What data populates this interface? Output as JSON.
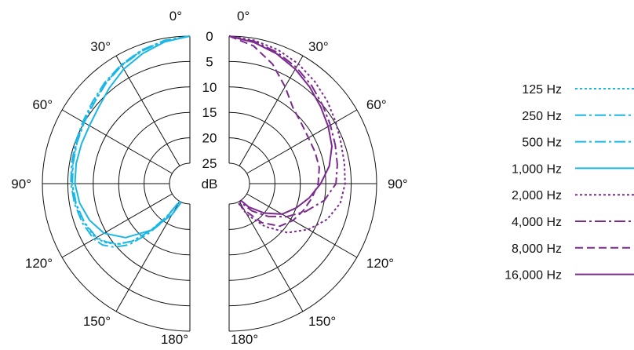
{
  "chart_data": {
    "type": "polar-line",
    "title": "",
    "radial_unit": "dB",
    "radial_ticks": [
      "0",
      "5",
      "10",
      "15",
      "20",
      "25"
    ],
    "radial_range_db": [
      0,
      25
    ],
    "angle_labels_left": [
      {
        "deg": 0,
        "label": "0°"
      },
      {
        "deg": 30,
        "label": "30°"
      },
      {
        "deg": 60,
        "label": "60°"
      },
      {
        "deg": 90,
        "label": "90°"
      },
      {
        "deg": 120,
        "label": "120°"
      },
      {
        "deg": 150,
        "label": "150°"
      },
      {
        "deg": 180,
        "label": "180°"
      }
    ],
    "angle_labels_right": [
      {
        "deg": 0,
        "label": "0°"
      },
      {
        "deg": 30,
        "label": "30°"
      },
      {
        "deg": 60,
        "label": "60°"
      },
      {
        "deg": 90,
        "label": "90°"
      },
      {
        "deg": 120,
        "label": "120°"
      },
      {
        "deg": 150,
        "label": "150°"
      },
      {
        "deg": 180,
        "label": "180°"
      }
    ],
    "colors": {
      "low": "#1ab7e6",
      "high": "#7b2a8e"
    },
    "series": [
      {
        "name": "125 Hz",
        "side": "left",
        "color": "#1ab7e6",
        "dash": "3 3",
        "points": [
          [
            0,
            0
          ],
          [
            10,
            0.5
          ],
          [
            20,
            1.2
          ],
          [
            30,
            2.1
          ],
          [
            40,
            3.2
          ],
          [
            50,
            4.2
          ],
          [
            60,
            4.9
          ],
          [
            70,
            5.3
          ],
          [
            80,
            5.6
          ],
          [
            90,
            5.8
          ],
          [
            100,
            6.2
          ],
          [
            110,
            6.8
          ],
          [
            120,
            7.6
          ],
          [
            125,
            8.8
          ],
          [
            130,
            10.4
          ],
          [
            135,
            13
          ],
          [
            140,
            17
          ],
          [
            145,
            21
          ],
          [
            150,
            25
          ]
        ]
      },
      {
        "name": "250 Hz",
        "side": "left",
        "color": "#1ab7e6",
        "dash": "14 4 3 4",
        "points": [
          [
            0,
            0
          ],
          [
            10,
            0.4
          ],
          [
            20,
            1.1
          ],
          [
            30,
            2.0
          ],
          [
            40,
            3.0
          ],
          [
            50,
            4.0
          ],
          [
            60,
            4.7
          ],
          [
            70,
            5.1
          ],
          [
            80,
            5.4
          ],
          [
            90,
            5.6
          ],
          [
            100,
            6.0
          ],
          [
            110,
            6.5
          ],
          [
            120,
            7.2
          ],
          [
            125,
            8.0
          ],
          [
            130,
            9.6
          ],
          [
            135,
            12
          ],
          [
            140,
            16
          ],
          [
            145,
            20
          ],
          [
            150,
            25
          ]
        ]
      },
      {
        "name": "500 Hz",
        "side": "left",
        "color": "#1ab7e6",
        "dash": "14 4 3 4",
        "points": [
          [
            0,
            0
          ],
          [
            10,
            0.5
          ],
          [
            20,
            1.3
          ],
          [
            30,
            2.2
          ],
          [
            40,
            3.3
          ],
          [
            50,
            4.4
          ],
          [
            60,
            5.0
          ],
          [
            70,
            5.4
          ],
          [
            80,
            5.7
          ],
          [
            90,
            5.9
          ],
          [
            100,
            6.3
          ],
          [
            110,
            6.9
          ],
          [
            120,
            7.8
          ],
          [
            125,
            9.0
          ],
          [
            130,
            10.6
          ],
          [
            135,
            13
          ],
          [
            140,
            17
          ],
          [
            145,
            21
          ],
          [
            150,
            25
          ]
        ]
      },
      {
        "name": "1,000 Hz",
        "side": "left",
        "color": "#1ab7e6",
        "dash": "",
        "points": [
          [
            0,
            0
          ],
          [
            10,
            0.7
          ],
          [
            20,
            1.8
          ],
          [
            30,
            3.0
          ],
          [
            40,
            4.4
          ],
          [
            50,
            5.6
          ],
          [
            60,
            6.2
          ],
          [
            70,
            6.3
          ],
          [
            80,
            6.3
          ],
          [
            90,
            6.4
          ],
          [
            100,
            7.0
          ],
          [
            110,
            8.0
          ],
          [
            120,
            9.5
          ],
          [
            130,
            12.5
          ],
          [
            140,
            17
          ],
          [
            150,
            22
          ],
          [
            155,
            25
          ]
        ]
      },
      {
        "name": "2,000 Hz",
        "side": "right",
        "color": "#7b2a8e",
        "dash": "3 3",
        "points": [
          [
            0,
            0
          ],
          [
            10,
            0.4
          ],
          [
            20,
            1.0
          ],
          [
            30,
            1.8
          ],
          [
            40,
            2.8
          ],
          [
            50,
            3.8
          ],
          [
            60,
            4.8
          ],
          [
            70,
            5.6
          ],
          [
            80,
            6.0
          ],
          [
            90,
            6.2
          ],
          [
            100,
            6.8
          ],
          [
            110,
            8.5
          ],
          [
            120,
            11
          ],
          [
            130,
            14
          ],
          [
            140,
            18
          ],
          [
            150,
            22
          ],
          [
            155,
            25
          ]
        ]
      },
      {
        "name": "4,000 Hz",
        "side": "right",
        "color": "#7b2a8e",
        "dash": "14 4 3 4",
        "points": [
          [
            0,
            0
          ],
          [
            10,
            0.6
          ],
          [
            20,
            1.5
          ],
          [
            30,
            2.6
          ],
          [
            40,
            3.8
          ],
          [
            50,
            5.0
          ],
          [
            60,
            6.0
          ],
          [
            70,
            6.8
          ],
          [
            80,
            7.4
          ],
          [
            90,
            8.0
          ],
          [
            100,
            10
          ],
          [
            110,
            13
          ],
          [
            120,
            16
          ],
          [
            130,
            19
          ],
          [
            140,
            22
          ],
          [
            150,
            25
          ]
        ]
      },
      {
        "name": "8,000 Hz",
        "side": "right",
        "color": "#7b2a8e",
        "dash": "10 5",
        "points": [
          [
            0,
            0
          ],
          [
            10,
            1.5
          ],
          [
            20,
            4.0
          ],
          [
            30,
            7.0
          ],
          [
            40,
            9.5
          ],
          [
            50,
            10.5
          ],
          [
            60,
            11
          ],
          [
            70,
            11
          ],
          [
            80,
            11
          ],
          [
            90,
            11.5
          ],
          [
            100,
            12.5
          ],
          [
            110,
            13.5
          ],
          [
            120,
            14.5
          ],
          [
            130,
            16
          ],
          [
            140,
            19
          ],
          [
            150,
            23
          ],
          [
            155,
            25
          ]
        ]
      },
      {
        "name": "16,000 Hz",
        "side": "right",
        "color": "#7b2a8e",
        "dash": "",
        "points": [
          [
            0,
            0
          ],
          [
            10,
            0.8
          ],
          [
            20,
            1.8
          ],
          [
            30,
            3.0
          ],
          [
            40,
            4.3
          ],
          [
            50,
            5.5
          ],
          [
            60,
            6.5
          ],
          [
            70,
            7.5
          ],
          [
            80,
            9.0
          ],
          [
            90,
            11
          ],
          [
            100,
            13
          ],
          [
            110,
            15
          ],
          [
            120,
            17
          ],
          [
            130,
            20
          ],
          [
            140,
            23
          ],
          [
            145,
            25
          ]
        ]
      }
    ],
    "legend": [
      {
        "label": "125 Hz",
        "color": "#1ab7e6",
        "dash": "3 3"
      },
      {
        "label": "250 Hz",
        "color": "#1ab7e6",
        "dash": "14 4 3 4"
      },
      {
        "label": "500 Hz",
        "color": "#1ab7e6",
        "dash": "14 4 3 4"
      },
      {
        "label": "1,000 Hz",
        "color": "#1ab7e6",
        "dash": ""
      },
      {
        "label": "2,000 Hz",
        "color": "#7b2a8e",
        "dash": "3 3"
      },
      {
        "label": "4,000 Hz",
        "color": "#7b2a8e",
        "dash": "14 4 3 4"
      },
      {
        "label": "8,000 Hz",
        "color": "#7b2a8e",
        "dash": "10 5"
      },
      {
        "label": "16,000 Hz",
        "color": "#7b2a8e",
        "dash": ""
      }
    ]
  }
}
